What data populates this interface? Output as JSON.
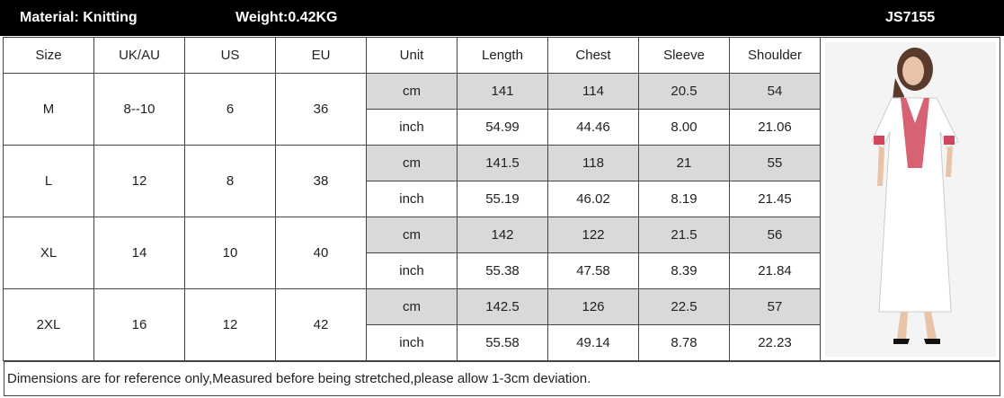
{
  "header": {
    "material": "Material: Knitting",
    "weight": "Weight:0.42KG",
    "code": "JS7155"
  },
  "table": {
    "columns": [
      "Size",
      "UK/AU",
      "US",
      "EU",
      "Unit",
      "Length",
      "Chest",
      "Sleeve",
      "Shoulder"
    ],
    "rows": [
      {
        "size": "M",
        "uk_au": "8--10",
        "us": "6",
        "eu": "36",
        "measurements": [
          {
            "unit": "cm",
            "length": "141",
            "chest": "114",
            "sleeve": "20.5",
            "shoulder": "54"
          },
          {
            "unit": "inch",
            "length": "54.99",
            "chest": "44.46",
            "sleeve": "8.00",
            "shoulder": "21.06"
          }
        ]
      },
      {
        "size": "L",
        "uk_au": "12",
        "us": "8",
        "eu": "38",
        "measurements": [
          {
            "unit": "cm",
            "length": "141.5",
            "chest": "118",
            "sleeve": "21",
            "shoulder": "55"
          },
          {
            "unit": "inch",
            "length": "55.19",
            "chest": "46.02",
            "sleeve": "8.19",
            "shoulder": "21.45"
          }
        ]
      },
      {
        "size": "XL",
        "uk_au": "14",
        "us": "10",
        "eu": "40",
        "measurements": [
          {
            "unit": "cm",
            "length": "142",
            "chest": "122",
            "sleeve": "21.5",
            "shoulder": "56"
          },
          {
            "unit": "inch",
            "length": "55.38",
            "chest": "47.58",
            "sleeve": "8.39",
            "shoulder": "21.84"
          }
        ]
      },
      {
        "size": "2XL",
        "uk_au": "16",
        "us": "12",
        "eu": "42",
        "measurements": [
          {
            "unit": "cm",
            "length": "142.5",
            "chest": "126",
            "sleeve": "22.5",
            "shoulder": "57"
          },
          {
            "unit": "inch",
            "length": "55.58",
            "chest": "49.14",
            "sleeve": "8.78",
            "shoulder": "22.23"
          }
        ]
      }
    ]
  },
  "footer": "Dimensions are for reference only,Measured before being stretched,please allow 1-3cm deviation."
}
